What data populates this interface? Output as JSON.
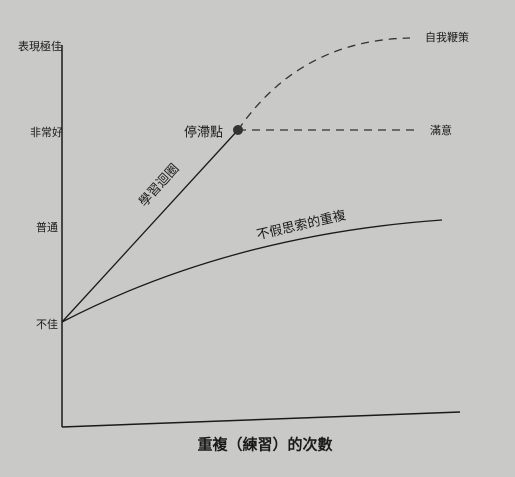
{
  "y_axis": {
    "labels": [
      "表現極佳",
      "非常好",
      "普通",
      "不佳"
    ]
  },
  "x_axis": {
    "label": "重複（練習）的次數"
  },
  "curves": {
    "learning": "學習迴圈",
    "autopilot": "不假思索的重複",
    "push": "自我鞭策",
    "satisfied": "滿意"
  },
  "points": {
    "plateau": "停滯點"
  }
}
